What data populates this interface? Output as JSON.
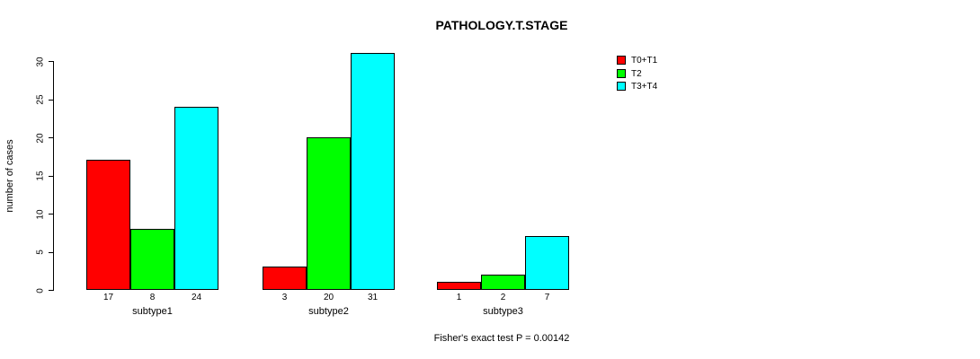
{
  "title": "PATHOLOGY.T.STAGE",
  "chart_data": {
    "type": "bar",
    "title": "PATHOLOGY.T.STAGE",
    "ylabel": "number of cases",
    "xlabel": "",
    "categories": [
      "subtype1",
      "subtype2",
      "subtype3"
    ],
    "series": [
      {
        "name": "T0+T1",
        "color": "#ff0000",
        "values": [
          17,
          3,
          1
        ]
      },
      {
        "name": "T2",
        "color": "#00ff00",
        "values": [
          8,
          20,
          2
        ]
      },
      {
        "name": "T3+T4",
        "color": "#00ffff",
        "values": [
          24,
          31,
          7
        ]
      }
    ],
    "bar_value_labels": [
      [
        "17",
        "8",
        "24"
      ],
      [
        "3",
        "20",
        "31"
      ],
      [
        "1",
        "2",
        "7"
      ]
    ],
    "yticks": [
      0,
      5,
      10,
      15,
      20,
      25,
      30
    ],
    "ylim": [
      0,
      30
    ],
    "grid": false,
    "legend_position": "top-right",
    "legend_entries": [
      "T0+T1",
      "T2",
      "T3+T4"
    ],
    "annotation": "Fisher's exact test P = 0.00142",
    "axis_color": "#000000",
    "background_color": "#ffffff"
  }
}
